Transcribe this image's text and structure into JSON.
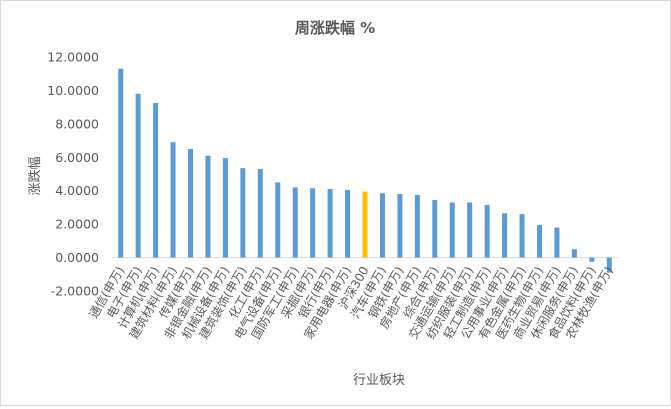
{
  "chart_data": {
    "type": "bar",
    "title": "周涨跌幅 %",
    "xlabel": "行业板块",
    "ylabel": "涨跌幅",
    "ylim": [
      -2,
      12
    ],
    "yticks": [
      12,
      10,
      8,
      6,
      4,
      2,
      0,
      -2
    ],
    "ytick_labels": [
      "12.0000",
      "10.0000",
      "8.0000",
      "6.0000",
      "4.0000",
      "2.0000",
      "0.0000",
      "-2.0000"
    ],
    "grid": false,
    "legend": "none",
    "bar_color": "#5b9bd5",
    "highlight_color": "#ffc000",
    "highlight_category": "沪深300",
    "categories": [
      "通信(申万)",
      "电子(申万)",
      "计算机(申万)",
      "建筑材料(申万)",
      "传媒(申万)",
      "非银金融(申万)",
      "机械设备(申万)",
      "建筑装饰(申万)",
      "化工(申万)",
      "电气设备(申万)",
      "国防军工(申万)",
      "采掘(申万)",
      "银行(申万)",
      "家用电器(申万)",
      "沪深300",
      "汽车(申万)",
      "钢铁(申万)",
      "房地产(申万)",
      "综合(申万)",
      "交通运输(申万)",
      "纺织服装(申万)",
      "轻工制造(申万)",
      "公用事业(申万)",
      "有色金属(申万)",
      "医药生物(申万)",
      "商业贸易(申万)",
      "休闲服务(申万)",
      "食品饮料(申万)",
      "农林牧渔(申万)"
    ],
    "values": [
      11.3,
      9.8,
      9.25,
      6.9,
      6.5,
      6.1,
      5.95,
      5.35,
      5.3,
      4.5,
      4.2,
      4.15,
      4.1,
      4.05,
      3.95,
      3.85,
      3.8,
      3.75,
      3.45,
      3.3,
      3.3,
      3.15,
      2.65,
      2.6,
      1.95,
      1.8,
      0.5,
      -0.25,
      -0.9
    ]
  }
}
